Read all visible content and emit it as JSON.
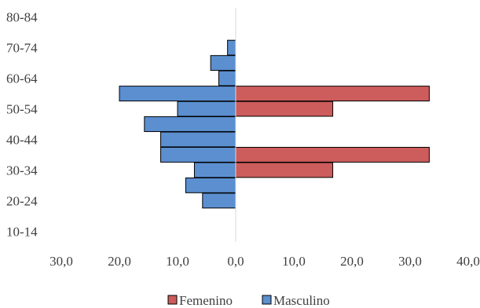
{
  "chart_data": {
    "type": "bar",
    "orientation": "horizontal",
    "layout": "population-pyramid",
    "categories": [
      "10-14",
      "15-19",
      "20-24",
      "25-29",
      "30-34",
      "35-39",
      "40-44",
      "45-49",
      "50-54",
      "55-59",
      "60-64",
      "65-69",
      "70-74",
      "75-79",
      "80-84"
    ],
    "y_tick_labels": [
      "80-84",
      "70-74",
      "60-64",
      "50-54",
      "40-44",
      "30-34",
      "20-24",
      "10-14"
    ],
    "x_tick_labels": [
      "30,0",
      "20,0",
      "10,0",
      "0,0",
      "10,0",
      "20,0",
      "30,0",
      "40,0"
    ],
    "xlim": [
      -30,
      40
    ],
    "series": [
      {
        "name": "Femenino",
        "color": "#CD5C5C",
        "side": "right",
        "values": [
          0,
          0,
          0,
          0,
          16.7,
          33.3,
          0,
          0,
          16.7,
          33.3,
          0,
          0,
          0,
          0,
          0
        ]
      },
      {
        "name": "Masculino",
        "color": "#5B8FD0",
        "side": "left",
        "values": [
          0,
          0,
          5.7,
          8.6,
          7.1,
          12.9,
          12.9,
          15.7,
          10.0,
          20.0,
          2.9,
          4.3,
          1.4,
          0,
          0
        ]
      }
    ],
    "legend": {
      "position": "bottom",
      "labels": [
        "Femenino",
        "Masculino"
      ]
    },
    "grid": false
  }
}
